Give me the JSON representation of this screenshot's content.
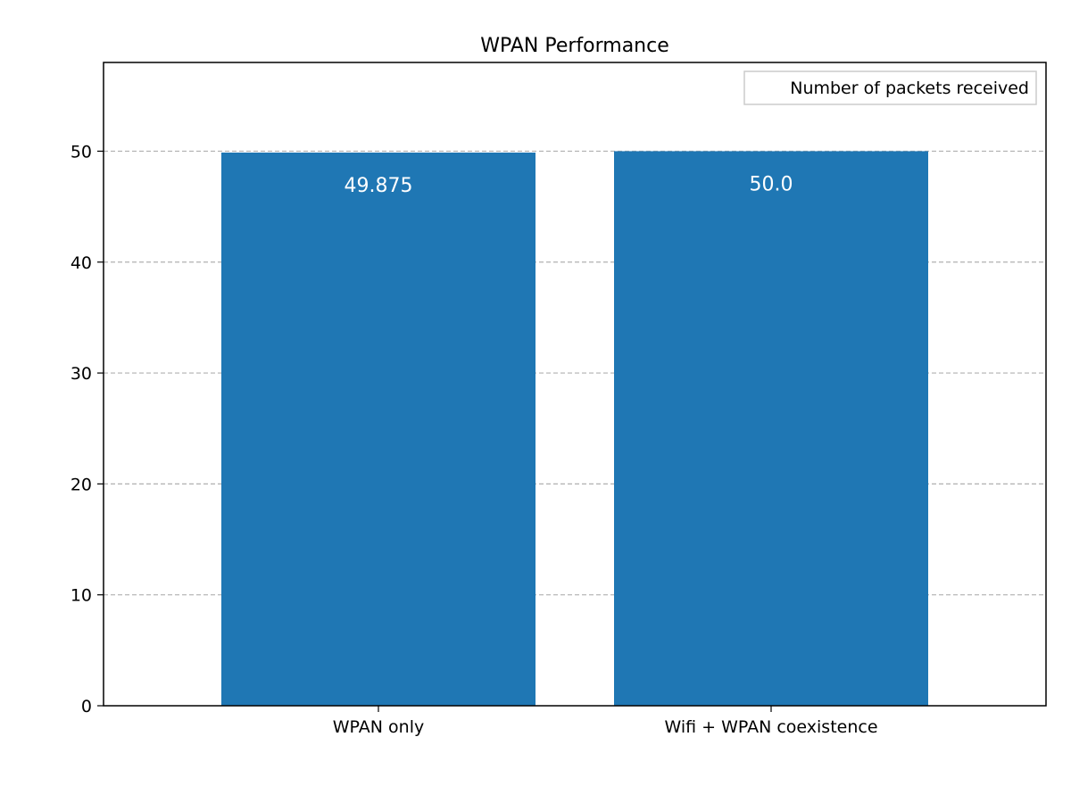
{
  "chart_data": {
    "type": "bar",
    "title": "WPAN Performance",
    "xlabel": "",
    "ylabel": "",
    "categories": [
      "WPAN only",
      "Wifi + WPAN coexistence"
    ],
    "series": [
      {
        "name": "Number of packets received",
        "values": [
          49.875,
          50.0
        ],
        "color": "#1f77b4"
      }
    ],
    "data_labels": [
      "49.875",
      "50.0"
    ],
    "data_label_color": "#ffffff",
    "ylim": [
      0,
      58
    ],
    "yticks": [
      0,
      10,
      20,
      30,
      40,
      50
    ],
    "ytick_labels": [
      "0",
      "10",
      "20",
      "30",
      "40",
      "50"
    ],
    "grid": {
      "axis": "y",
      "style": "dashed",
      "color": "#b0b0b0"
    },
    "legend": {
      "position": "top-right",
      "show_swatch": false
    }
  }
}
